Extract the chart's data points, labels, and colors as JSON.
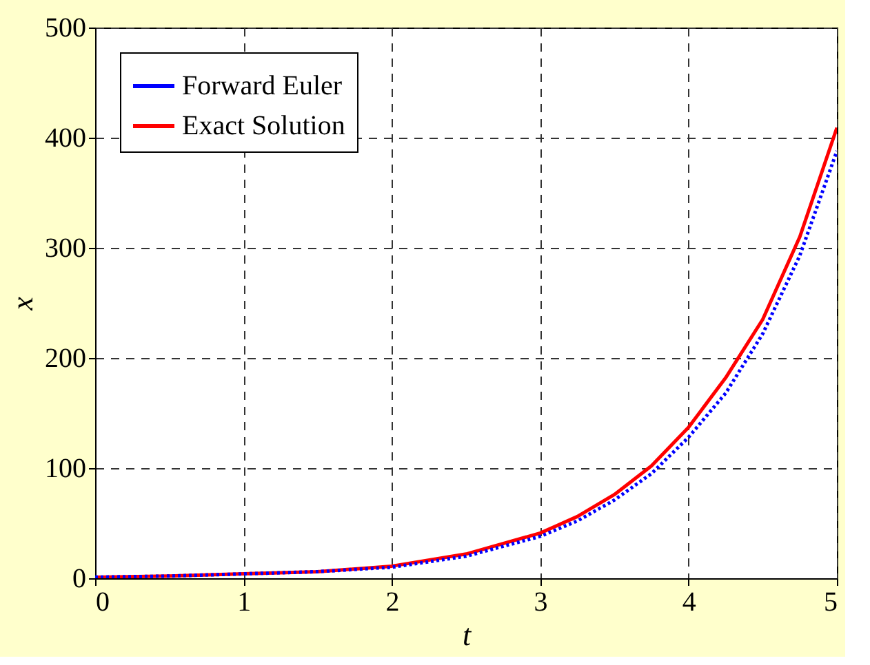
{
  "chart_data": {
    "type": "line",
    "xlabel": "t",
    "ylabel": "x",
    "x": [
      0,
      0.5,
      1,
      1.5,
      2,
      2.5,
      3,
      3.25,
      3.5,
      3.75,
      4,
      4.25,
      4.5,
      4.75,
      5
    ],
    "series": [
      {
        "name": "Forward Euler",
        "color": "#0000ff",
        "line_style": "dotted",
        "values": [
          1,
          2,
          4,
          6,
          10,
          20,
          38,
          52,
          71,
          95,
          128,
          168,
          222,
          293,
          388
        ]
      },
      {
        "name": "Exact Solution",
        "color": "#ff0000",
        "line_style": "solid",
        "values": [
          1,
          2,
          4,
          6,
          11,
          22,
          41,
          56,
          76,
          102,
          137,
          182,
          235,
          310,
          409
        ]
      }
    ],
    "xlim": [
      0,
      5
    ],
    "xticks": [
      0,
      1,
      2,
      3,
      4,
      5
    ],
    "ylim": [
      0,
      500
    ],
    "yticks": [
      0,
      100,
      200,
      300,
      400,
      500
    ],
    "grid": true,
    "legend": "top left"
  }
}
